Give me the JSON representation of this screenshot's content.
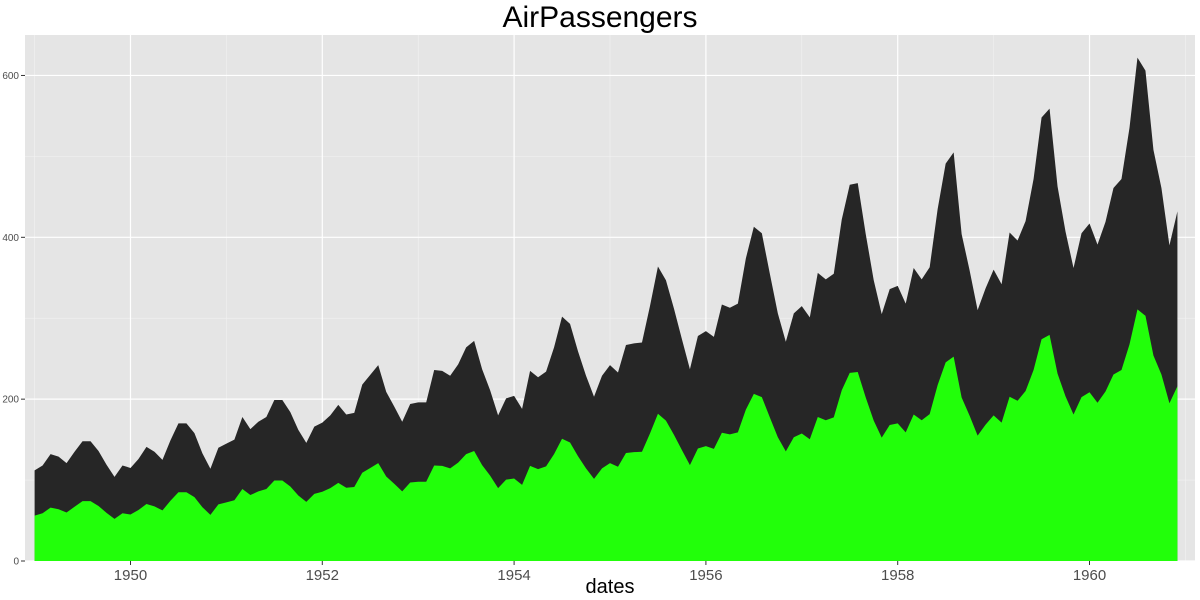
{
  "chart_data": {
    "type": "area",
    "title": "AirPassengers",
    "xlabel": "dates",
    "ylabel": "",
    "x_start": "1949-01",
    "x_end": "1960-12",
    "x_frequency": "monthly",
    "xlim": [
      1948.9,
      1961.1
    ],
    "ylim": [
      0,
      650
    ],
    "x_ticks": [
      1950,
      1952,
      1954,
      1956,
      1958,
      1960
    ],
    "x_tick_labels": [
      "1950",
      "1952",
      "1954",
      "1956",
      "1958",
      "1960"
    ],
    "y_ticks": [
      0,
      200,
      400,
      600
    ],
    "y_tick_labels": [
      "0",
      "200",
      "400",
      "600"
    ],
    "grid": true,
    "legend": "none",
    "stacked": false,
    "series": [
      {
        "color": "#262626",
        "values": [
          112,
          118,
          132,
          129,
          121,
          135,
          148,
          148,
          136,
          119,
          104,
          118,
          115,
          126,
          141,
          135,
          125,
          149,
          170,
          170,
          158,
          133,
          114,
          140,
          145,
          150,
          178,
          163,
          172,
          178,
          199,
          199,
          184,
          162,
          146,
          166,
          171,
          180,
          193,
          181,
          183,
          218,
          230,
          242,
          209,
          191,
          172,
          194,
          196,
          196,
          236,
          235,
          229,
          243,
          264,
          272,
          237,
          211,
          180,
          201,
          204,
          188,
          235,
          227,
          234,
          264,
          302,
          293,
          259,
          229,
          203,
          229,
          242,
          233,
          267,
          269,
          270,
          315,
          364,
          347,
          312,
          274,
          237,
          278,
          284,
          277,
          317,
          313,
          318,
          374,
          413,
          405,
          355,
          306,
          271,
          306,
          315,
          301,
          356,
          348,
          355,
          422,
          465,
          467,
          404,
          347,
          305,
          336,
          340,
          318,
          362,
          348,
          363,
          435,
          491,
          505,
          404,
          359,
          310,
          337,
          360,
          342,
          406,
          396,
          420,
          472,
          548,
          559,
          463,
          407,
          362,
          405,
          417,
          391,
          419,
          461,
          472,
          535,
          622,
          606,
          508,
          461,
          390,
          432
        ]
      },
      {
        "color": "#22ff0a",
        "values": [
          56,
          59,
          66,
          64,
          60,
          67,
          74,
          74,
          68,
          59.5,
          52,
          59,
          57.5,
          63,
          70.5,
          67.5,
          62.5,
          74.5,
          85,
          85,
          79,
          66.5,
          57,
          70,
          72.5,
          75,
          89,
          81.5,
          86,
          89,
          99.5,
          99.5,
          92,
          81,
          73,
          83,
          85.5,
          90,
          96.5,
          90.5,
          91.5,
          109,
          115,
          121,
          104.5,
          95.5,
          86,
          97,
          98,
          98,
          118,
          117.5,
          114.5,
          121.5,
          132,
          136,
          118.5,
          105.5,
          90,
          100.5,
          102,
          94,
          117.5,
          113.5,
          117,
          132,
          151,
          146.5,
          129.5,
          114.5,
          101.5,
          114.5,
          121,
          116.5,
          133.5,
          134.5,
          135,
          157.5,
          182,
          173.5,
          156,
          137,
          118.5,
          139,
          142,
          138.5,
          158.5,
          156.5,
          159,
          187,
          206.5,
          202.5,
          177.5,
          153,
          135.5,
          153,
          157.5,
          150.5,
          178,
          174,
          177.5,
          211,
          232.5,
          233.5,
          202,
          173.5,
          152.5,
          168,
          170,
          159,
          181,
          174,
          181.5,
          217.5,
          245.5,
          252.5,
          202,
          179.5,
          155,
          168.5,
          180,
          171,
          203,
          198,
          210,
          236,
          274,
          279.5,
          231.5,
          203.5,
          181,
          202.5,
          208.5,
          195.5,
          209.5,
          230.5,
          236,
          267.5,
          311,
          303,
          254,
          230.5,
          195,
          216
        ]
      }
    ]
  }
}
